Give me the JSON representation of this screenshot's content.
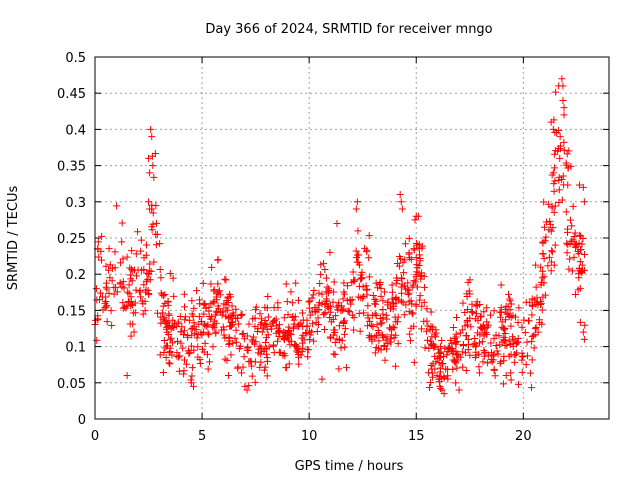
{
  "chart_data": {
    "type": "scatter",
    "title": "Day 366 of 2024, SRMTID for receiver mngo",
    "xlabel": "GPS time / hours",
    "ylabel": "SRMTID / TECUs",
    "xlim": [
      0,
      24
    ],
    "ylim": [
      0,
      0.5
    ],
    "x_ticks": [
      0,
      5,
      10,
      15,
      20
    ],
    "x_tick_labels": [
      "0",
      "5",
      "10",
      "15",
      "20"
    ],
    "y_ticks": [
      0,
      0.05,
      0.1,
      0.15,
      0.2,
      0.25,
      0.3,
      0.35,
      0.4,
      0.45,
      0.5
    ],
    "y_tick_labels": [
      "0",
      "0.05",
      "0.1",
      "0.15",
      "0.2",
      "0.25",
      "0.3",
      "0.35",
      "0.4",
      "0.45",
      "0.5"
    ],
    "grid": true,
    "marker": "+",
    "color": "#ff0000",
    "x_range_of_data": [
      0,
      22.9
    ],
    "profile_x": [
      0,
      0.3,
      0.6,
      1.0,
      1.5,
      2.0,
      2.4,
      2.6,
      2.8,
      3.0,
      3.3,
      3.8,
      4.3,
      4.8,
      5.3,
      5.8,
      6.3,
      6.8,
      7.3,
      7.8,
      8.3,
      8.8,
      9.3,
      9.8,
      10.3,
      10.8,
      11.3,
      11.8,
      12.3,
      12.8,
      13.3,
      13.8,
      14.3,
      14.8,
      15.2,
      15.5,
      15.8,
      16.1,
      16.4,
      16.7,
      17.0,
      17.4,
      17.8,
      18.2,
      18.6,
      19.0,
      19.4,
      19.8,
      20.2,
      20.5,
      20.8,
      21.1,
      21.4,
      21.7,
      21.9,
      22.1,
      22.4,
      22.7,
      22.9
    ],
    "profile_y": [
      0.17,
      0.2,
      0.17,
      0.2,
      0.18,
      0.17,
      0.18,
      0.2,
      0.3,
      0.17,
      0.13,
      0.12,
      0.11,
      0.12,
      0.15,
      0.16,
      0.13,
      0.1,
      0.1,
      0.11,
      0.12,
      0.12,
      0.12,
      0.11,
      0.15,
      0.17,
      0.13,
      0.14,
      0.2,
      0.17,
      0.14,
      0.13,
      0.17,
      0.17,
      0.2,
      0.12,
      0.1,
      0.08,
      0.08,
      0.09,
      0.11,
      0.14,
      0.13,
      0.12,
      0.1,
      0.12,
      0.12,
      0.11,
      0.12,
      0.14,
      0.17,
      0.24,
      0.3,
      0.35,
      0.33,
      0.28,
      0.25,
      0.22,
      0.22
    ],
    "profile_spread": [
      0.05,
      0.05,
      0.05,
      0.05,
      0.05,
      0.05,
      0.05,
      0.05,
      0.08,
      0.05,
      0.04,
      0.04,
      0.04,
      0.04,
      0.04,
      0.04,
      0.04,
      0.035,
      0.035,
      0.035,
      0.035,
      0.035,
      0.035,
      0.035,
      0.04,
      0.04,
      0.04,
      0.04,
      0.05,
      0.05,
      0.04,
      0.04,
      0.05,
      0.05,
      0.05,
      0.04,
      0.035,
      0.03,
      0.03,
      0.03,
      0.035,
      0.04,
      0.04,
      0.035,
      0.035,
      0.035,
      0.035,
      0.035,
      0.04,
      0.04,
      0.05,
      0.06,
      0.07,
      0.07,
      0.07,
      0.06,
      0.05,
      0.05,
      0.05
    ],
    "spike_points": [
      [
        2.5,
        0.36
      ],
      [
        2.55,
        0.34
      ],
      [
        2.6,
        0.4
      ],
      [
        2.65,
        0.39
      ],
      [
        2.7,
        0.35
      ],
      [
        2.5,
        0.3
      ],
      [
        2.55,
        0.29
      ],
      [
        14.25,
        0.31
      ],
      [
        14.3,
        0.3
      ],
      [
        14.35,
        0.29
      ],
      [
        15.0,
        0.28
      ],
      [
        15.1,
        0.28
      ],
      [
        21.3,
        0.41
      ],
      [
        21.4,
        0.4
      ],
      [
        21.6,
        0.37
      ],
      [
        21.7,
        0.36
      ],
      [
        21.8,
        0.47
      ],
      [
        21.85,
        0.46
      ],
      [
        21.85,
        0.44
      ],
      [
        21.9,
        0.43
      ],
      [
        21.9,
        0.42
      ],
      [
        22.8,
        0.32
      ],
      [
        22.85,
        0.3
      ],
      [
        22.8,
        0.12
      ],
      [
        22.85,
        0.11
      ],
      [
        12.2,
        0.29
      ],
      [
        12.25,
        0.3
      ],
      [
        11.3,
        0.27
      ],
      [
        16.2,
        0.04
      ],
      [
        16.3,
        0.035
      ],
      [
        16.1,
        0.045
      ],
      [
        17.0,
        0.04
      ],
      [
        7.0,
        0.045
      ],
      [
        7.1,
        0.04
      ],
      [
        4.5,
        0.05
      ],
      [
        4.6,
        0.045
      ],
      [
        1.5,
        0.06
      ],
      [
        10.6,
        0.055
      ],
      [
        19.2,
        0.06
      ]
    ],
    "points_per_hour": 56,
    "seed": 366
  }
}
